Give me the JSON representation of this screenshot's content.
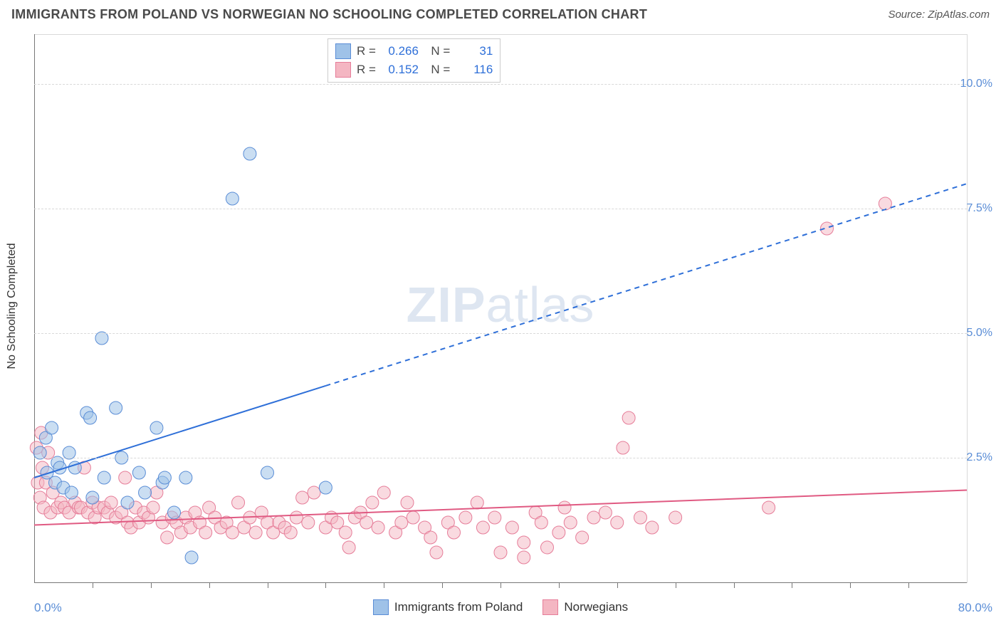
{
  "chart": {
    "type": "scatter",
    "title": "IMMIGRANTS FROM POLAND VS NORWEGIAN NO SCHOOLING COMPLETED CORRELATION CHART",
    "source_label": "Source: ZipAtlas.com",
    "y_axis_label": "No Schooling Completed",
    "watermark_a": "ZIP",
    "watermark_b": "atlas",
    "xlim": [
      0,
      80
    ],
    "ylim": [
      0,
      11
    ],
    "x_min_label": "0.0%",
    "x_max_label": "80.0%",
    "y_ticks": [
      {
        "v": 2.5,
        "label": "2.5%"
      },
      {
        "v": 5.0,
        "label": "5.0%"
      },
      {
        "v": 7.5,
        "label": "7.5%"
      },
      {
        "v": 10.0,
        "label": "10.0%"
      }
    ],
    "x_tick_step": 5,
    "background_color": "#ffffff",
    "grid_color": "#d9d9d9",
    "series": {
      "poland": {
        "label": "Immigrants from Poland",
        "marker_fill": "#9fc2e8",
        "marker_stroke": "#5a8dd6",
        "fill_opacity": 0.55,
        "marker_radius": 9,
        "trend_color": "#2e6fd8",
        "trend_width": 2,
        "trend_solid_end_x": 25,
        "trend_y0": 2.1,
        "trend_y80": 8.0,
        "R": "0.266",
        "N": "31",
        "points": [
          [
            0.5,
            2.6
          ],
          [
            1.0,
            2.9
          ],
          [
            1.1,
            2.2
          ],
          [
            1.5,
            3.1
          ],
          [
            1.8,
            2.0
          ],
          [
            2.0,
            2.4
          ],
          [
            2.2,
            2.3
          ],
          [
            2.5,
            1.9
          ],
          [
            3.0,
            2.6
          ],
          [
            3.2,
            1.8
          ],
          [
            3.5,
            2.3
          ],
          [
            4.5,
            3.4
          ],
          [
            4.8,
            3.3
          ],
          [
            5.0,
            1.7
          ],
          [
            5.8,
            4.9
          ],
          [
            6.0,
            2.1
          ],
          [
            7.0,
            3.5
          ],
          [
            7.5,
            2.5
          ],
          [
            8.0,
            1.6
          ],
          [
            9.0,
            2.2
          ],
          [
            9.5,
            1.8
          ],
          [
            10.5,
            3.1
          ],
          [
            11.0,
            2.0
          ],
          [
            11.2,
            2.1
          ],
          [
            12.0,
            1.4
          ],
          [
            13.0,
            2.1
          ],
          [
            13.5,
            0.5
          ],
          [
            17.0,
            7.7
          ],
          [
            18.5,
            8.6
          ],
          [
            20.0,
            2.2
          ],
          [
            25.0,
            1.9
          ]
        ]
      },
      "norwegians": {
        "label": "Norwegians",
        "marker_fill": "#f4b6c2",
        "marker_stroke": "#e67d99",
        "fill_opacity": 0.5,
        "marker_radius": 9,
        "trend_color": "#e05a82",
        "trend_width": 2,
        "trend_solid_end_x": 80,
        "trend_y0": 1.15,
        "trend_y80": 1.85,
        "R": "0.152",
        "N": "116",
        "points": [
          [
            0.2,
            2.7
          ],
          [
            0.3,
            2.0
          ],
          [
            0.5,
            1.7
          ],
          [
            0.6,
            3.0
          ],
          [
            0.7,
            2.3
          ],
          [
            0.8,
            1.5
          ],
          [
            1.0,
            2.0
          ],
          [
            1.2,
            2.6
          ],
          [
            1.4,
            1.4
          ],
          [
            1.6,
            1.8
          ],
          [
            2.0,
            1.5
          ],
          [
            2.3,
            1.6
          ],
          [
            2.6,
            1.5
          ],
          [
            3.0,
            1.4
          ],
          [
            3.5,
            1.6
          ],
          [
            3.8,
            1.5
          ],
          [
            4.0,
            1.5
          ],
          [
            4.3,
            2.3
          ],
          [
            4.6,
            1.4
          ],
          [
            5.0,
            1.6
          ],
          [
            5.2,
            1.3
          ],
          [
            5.5,
            1.5
          ],
          [
            6.0,
            1.5
          ],
          [
            6.3,
            1.4
          ],
          [
            6.6,
            1.6
          ],
          [
            7.0,
            1.3
          ],
          [
            7.5,
            1.4
          ],
          [
            7.8,
            2.1
          ],
          [
            8.0,
            1.2
          ],
          [
            8.3,
            1.1
          ],
          [
            8.7,
            1.5
          ],
          [
            9.0,
            1.2
          ],
          [
            9.4,
            1.4
          ],
          [
            9.8,
            1.3
          ],
          [
            10.2,
            1.5
          ],
          [
            10.5,
            1.8
          ],
          [
            11.0,
            1.2
          ],
          [
            11.4,
            0.9
          ],
          [
            11.8,
            1.3
          ],
          [
            12.2,
            1.2
          ],
          [
            12.6,
            1.0
          ],
          [
            13.0,
            1.3
          ],
          [
            13.4,
            1.1
          ],
          [
            13.8,
            1.4
          ],
          [
            14.2,
            1.2
          ],
          [
            14.7,
            1.0
          ],
          [
            15.0,
            1.5
          ],
          [
            15.5,
            1.3
          ],
          [
            16.0,
            1.1
          ],
          [
            16.5,
            1.2
          ],
          [
            17.0,
            1.0
          ],
          [
            17.5,
            1.6
          ],
          [
            18.0,
            1.1
          ],
          [
            18.5,
            1.3
          ],
          [
            19.0,
            1.0
          ],
          [
            19.5,
            1.4
          ],
          [
            20.0,
            1.2
          ],
          [
            20.5,
            1.0
          ],
          [
            21.0,
            1.2
          ],
          [
            21.5,
            1.1
          ],
          [
            22.0,
            1.0
          ],
          [
            22.5,
            1.3
          ],
          [
            23.0,
            1.7
          ],
          [
            23.5,
            1.2
          ],
          [
            24.0,
            1.8
          ],
          [
            25.0,
            1.1
          ],
          [
            25.5,
            1.3
          ],
          [
            26.0,
            1.2
          ],
          [
            26.7,
            1.0
          ],
          [
            27.0,
            0.7
          ],
          [
            27.5,
            1.3
          ],
          [
            28.0,
            1.4
          ],
          [
            28.5,
            1.2
          ],
          [
            29.0,
            1.6
          ],
          [
            29.5,
            1.1
          ],
          [
            30.0,
            1.8
          ],
          [
            31.0,
            1.0
          ],
          [
            31.5,
            1.2
          ],
          [
            32.0,
            1.6
          ],
          [
            32.5,
            1.3
          ],
          [
            33.5,
            1.1
          ],
          [
            34.0,
            0.9
          ],
          [
            34.5,
            0.6
          ],
          [
            35.5,
            1.2
          ],
          [
            36.0,
            1.0
          ],
          [
            37.0,
            1.3
          ],
          [
            38.0,
            1.6
          ],
          [
            38.5,
            1.1
          ],
          [
            39.5,
            1.3
          ],
          [
            40.0,
            0.6
          ],
          [
            41.0,
            1.1
          ],
          [
            42.0,
            0.8
          ],
          [
            42.0,
            0.5
          ],
          [
            43.0,
            1.4
          ],
          [
            43.5,
            1.2
          ],
          [
            44.0,
            0.7
          ],
          [
            45.0,
            1.0
          ],
          [
            45.5,
            1.5
          ],
          [
            46.0,
            1.2
          ],
          [
            47.0,
            0.9
          ],
          [
            48.0,
            1.3
          ],
          [
            49.0,
            1.4
          ],
          [
            50.0,
            1.2
          ],
          [
            50.5,
            2.7
          ],
          [
            51.0,
            3.3
          ],
          [
            52.0,
            1.3
          ],
          [
            53.0,
            1.1
          ],
          [
            55.0,
            1.3
          ],
          [
            63.0,
            1.5
          ],
          [
            68.0,
            7.1
          ],
          [
            73.0,
            7.6
          ]
        ]
      }
    }
  }
}
